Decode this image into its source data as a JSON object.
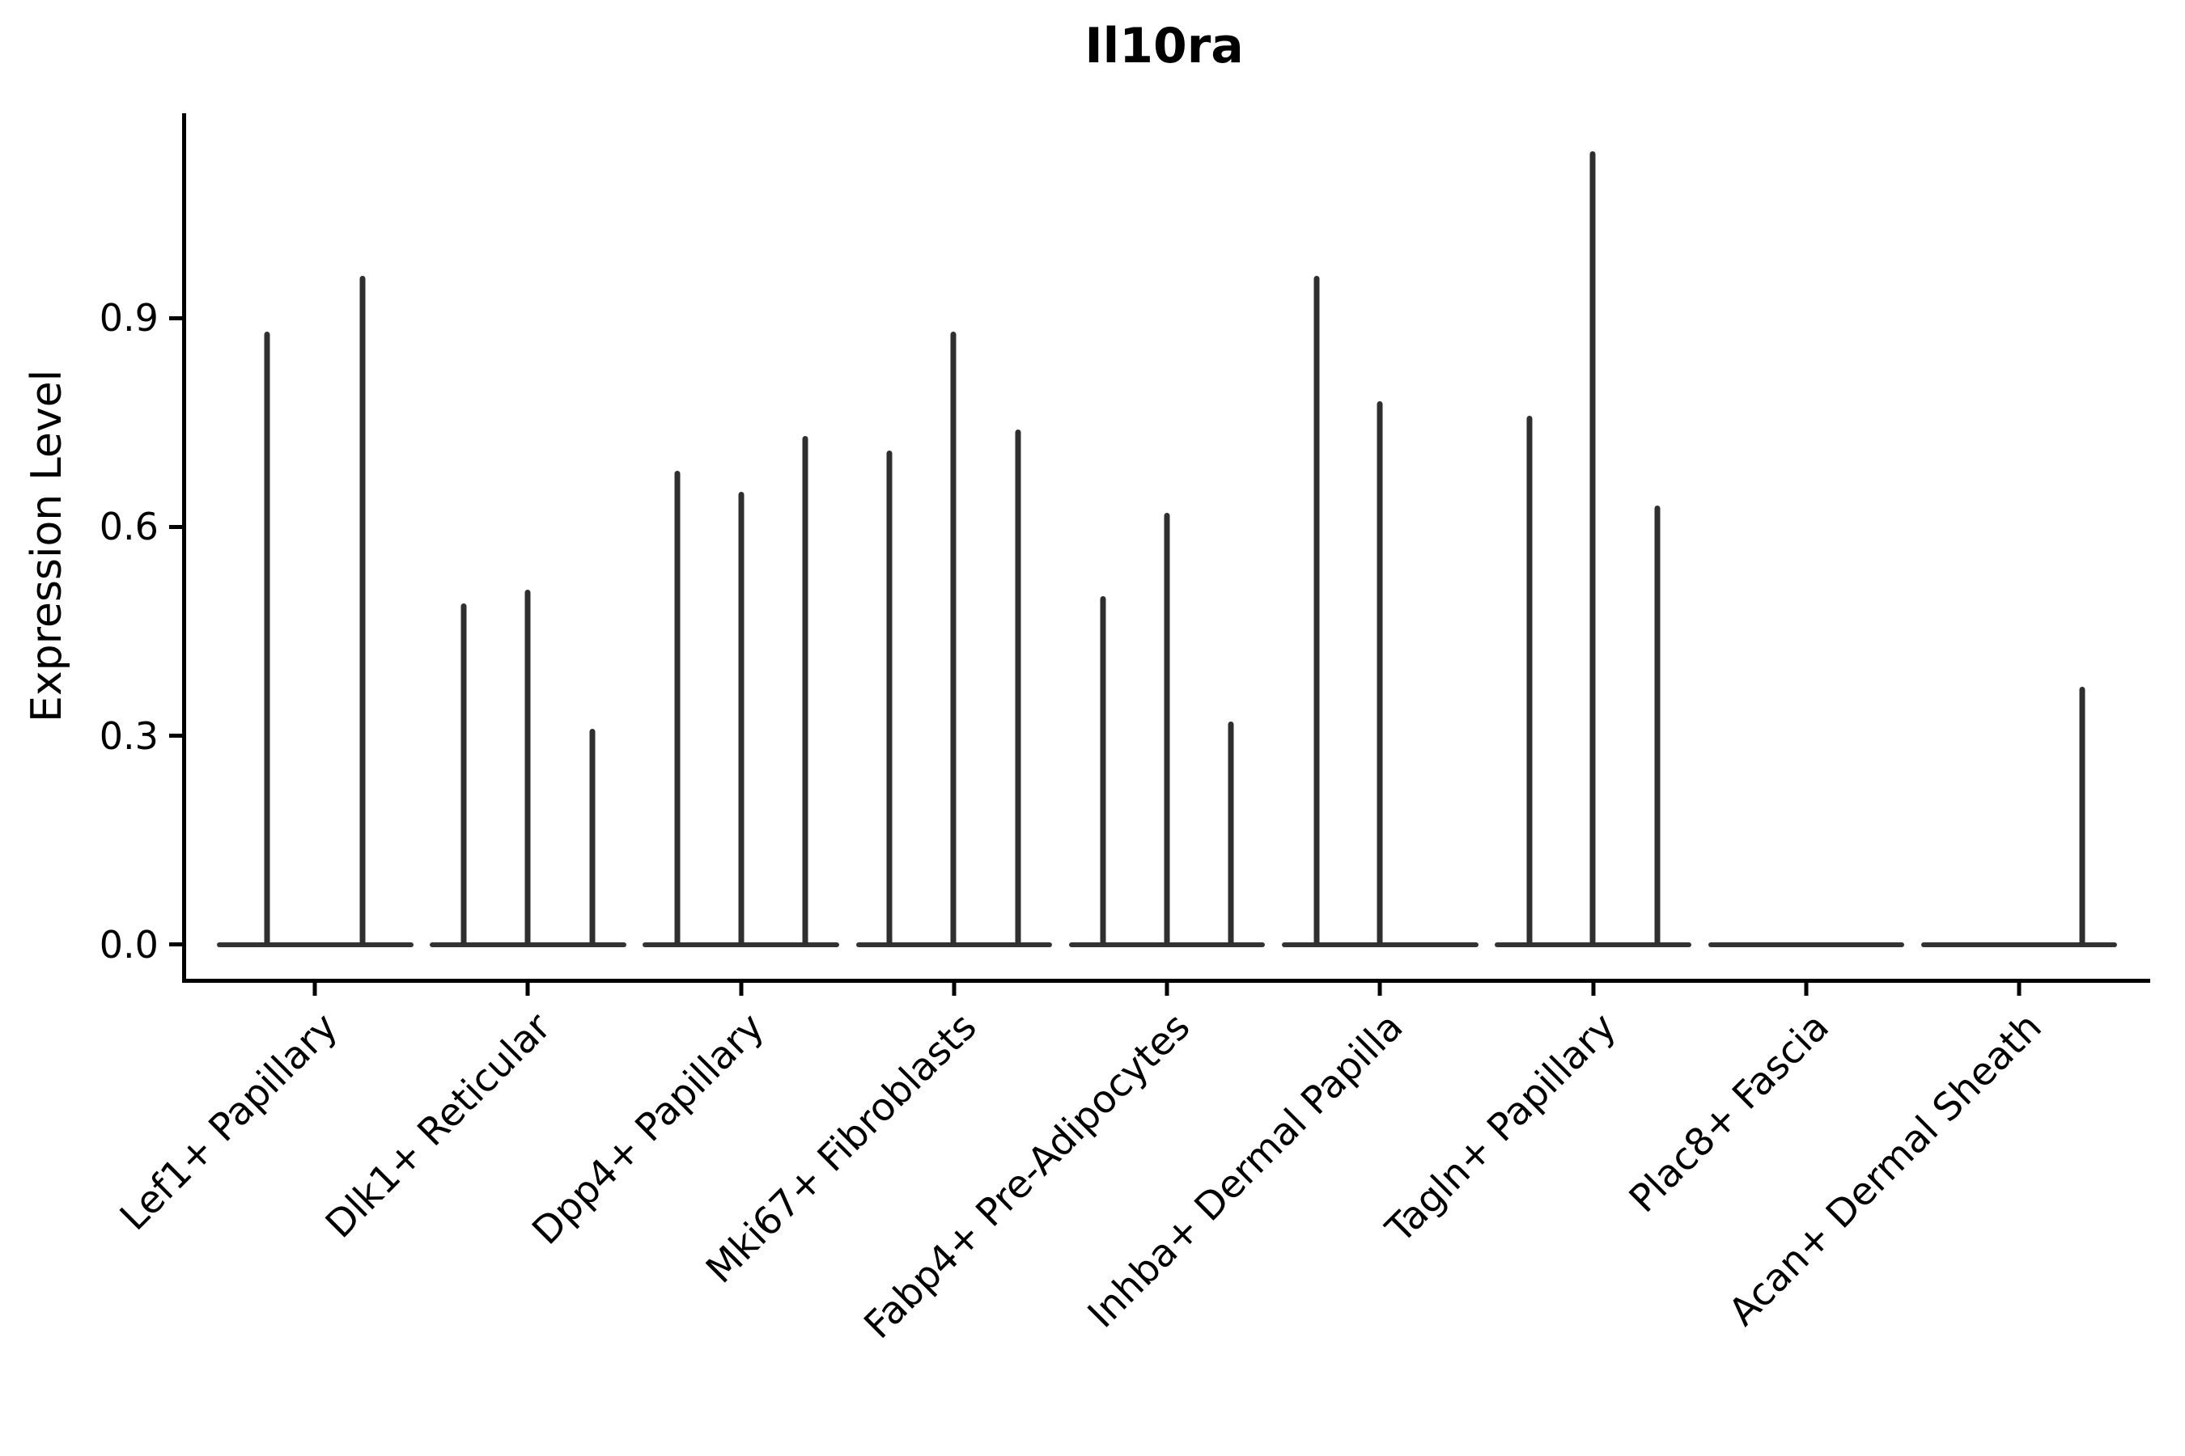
{
  "chart_data": {
    "type": "violin",
    "title": "Il10ra",
    "ylabel": "Expression Level",
    "xlabel": "",
    "grid": false,
    "legend": false,
    "ylim": [
      -0.049,
      1.194
    ],
    "ytick_values": [
      0.0,
      0.3,
      0.6,
      0.9
    ],
    "ytick_labels": [
      "0.0",
      "0.3",
      "0.6",
      "0.9"
    ],
    "categories": [
      "Lef1+ Papillary",
      "Dlk1+ Reticular",
      "Dpp4+ Papillary",
      "Mki67+ Fibroblasts",
      "Fabp4+ Pre-Adipocytes",
      "Inhba+ Dermal Papilla",
      "Tagln+ Papillary",
      "Plac8+ Fascia",
      "Acan+ Dermal Sheath"
    ],
    "base_halfwidth_pct": 5.0,
    "violin_color": "#2f2f2f",
    "axis_color": "#000000",
    "groups": [
      {
        "label": "Lef1+ Papillary",
        "center_pct": 6.57,
        "spikes": [
          {
            "x_pct": 4.13,
            "value": 0.88
          },
          {
            "x_pct": 9.0,
            "value": 0.96
          }
        ]
      },
      {
        "label": "Dlk1+ Reticular",
        "center_pct": 17.41,
        "spikes": [
          {
            "x_pct": 14.15,
            "value": 0.49
          },
          {
            "x_pct": 17.4,
            "value": 0.51
          },
          {
            "x_pct": 20.67,
            "value": 0.31
          }
        ]
      },
      {
        "label": "Dpp4+ Papillary",
        "center_pct": 28.25,
        "spikes": [
          {
            "x_pct": 25.02,
            "value": 0.68
          },
          {
            "x_pct": 28.25,
            "value": 0.65
          },
          {
            "x_pct": 31.52,
            "value": 0.73
          }
        ]
      },
      {
        "label": "Mki67+ Fibroblasts",
        "center_pct": 39.1,
        "spikes": [
          {
            "x_pct": 35.8,
            "value": 0.71
          },
          {
            "x_pct": 39.07,
            "value": 0.88
          },
          {
            "x_pct": 42.37,
            "value": 0.74
          }
        ]
      },
      {
        "label": "Fabp4+ Pre-Adipocytes",
        "center_pct": 49.94,
        "spikes": [
          {
            "x_pct": 46.7,
            "value": 0.5
          },
          {
            "x_pct": 49.95,
            "value": 0.62
          },
          {
            "x_pct": 53.19,
            "value": 0.32
          }
        ]
      },
      {
        "label": "Inhba+ Dermal Papilla",
        "center_pct": 60.79,
        "spikes": [
          {
            "x_pct": 57.55,
            "value": 0.96
          },
          {
            "x_pct": 60.78,
            "value": 0.78
          }
        ]
      },
      {
        "label": "Tagln+ Papillary",
        "center_pct": 71.63,
        "spikes": [
          {
            "x_pct": 68.38,
            "value": 0.76
          },
          {
            "x_pct": 71.62,
            "value": 1.14
          },
          {
            "x_pct": 74.9,
            "value": 0.63
          }
        ]
      },
      {
        "label": "Plac8+ Fascia",
        "center_pct": 82.48,
        "spikes": []
      },
      {
        "label": "Acan+ Dermal Sheath",
        "center_pct": 93.32,
        "spikes": [
          {
            "x_pct": 96.55,
            "value": 0.37
          }
        ]
      }
    ]
  }
}
